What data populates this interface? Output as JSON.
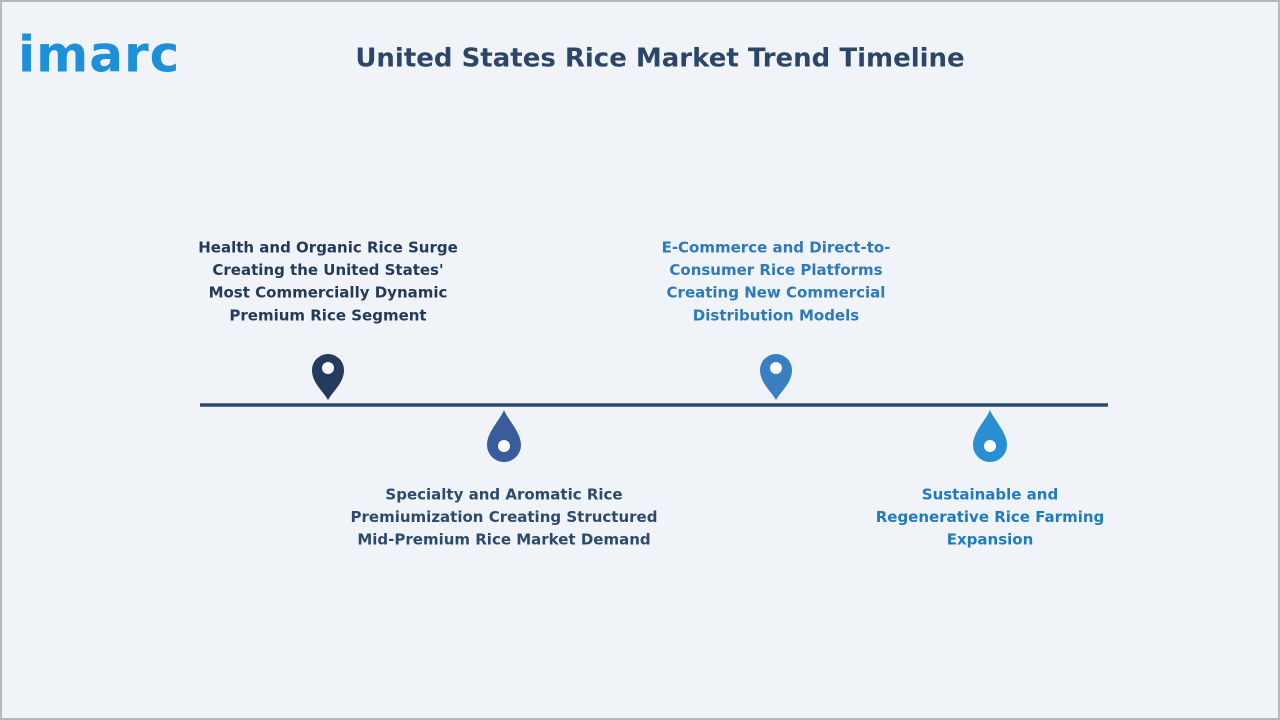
{
  "header": {
    "logo": "imarc",
    "title": "United States Rice Market Trend Timeline"
  },
  "timeline": {
    "items": [
      {
        "lines": [
          "Health and Organic Rice Surge",
          "Creating the United States'",
          "Most Commercially Dynamic",
          "Premium Rice Segment"
        ]
      },
      {
        "lines": [
          "Specialty and Aromatic Rice",
          "Premiumization Creating Structured",
          "Mid-Premium Rice Market Demand"
        ]
      },
      {
        "lines": [
          "E-Commerce and Direct-to-",
          "Consumer Rice Platforms",
          "Creating New Commercial",
          "Distribution Models"
        ]
      },
      {
        "lines": [
          "Sustainable and",
          "Regenerative Rice Farming",
          "Expansion"
        ]
      }
    ]
  }
}
